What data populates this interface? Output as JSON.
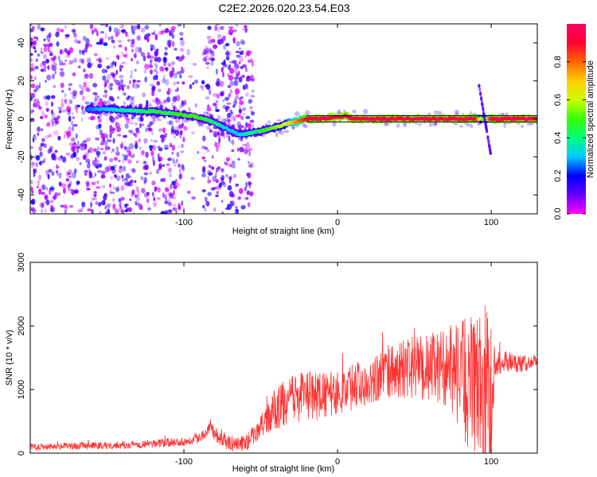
{
  "title": "C2E2.2026.020.23.54.E03",
  "chart_data": [
    {
      "type": "heatmap",
      "xlabel": "Height of straight line (km)",
      "ylabel": "Frequency (Hz)",
      "xlim": [
        -200,
        130
      ],
      "ylim": [
        -50,
        50
      ],
      "xticks": [
        -100,
        0,
        100
      ],
      "yticks": [
        -40,
        -20,
        0,
        20,
        40
      ],
      "colorbar": {
        "label": "Normalized spectral amplitude",
        "range": [
          0.0,
          1.0
        ],
        "ticks": [
          0.0,
          0.2,
          0.4,
          0.6,
          0.8
        ],
        "tick_labels": [
          "0.0",
          "0.2",
          "0.4",
          "0.6",
          "0.8"
        ],
        "colors": [
          "#ff00ff",
          "#6600ff",
          "#0000ff",
          "#00c8ff",
          "#00ff80",
          "#33ff00",
          "#ccff00",
          "#ffcc00",
          "#ff6600",
          "#ff0033",
          "#ff0066"
        ]
      },
      "trace": {
        "x": [
          -163,
          -150,
          -140,
          -130,
          -120,
          -110,
          -100,
          -95,
          -90,
          -85,
          -80,
          -75,
          -70,
          -65,
          -60,
          -55,
          -50,
          -45,
          -40,
          -35,
          -30,
          -25,
          -20,
          -10,
          0,
          5,
          10,
          20,
          40,
          60,
          80,
          90,
          93,
          96,
          100,
          130
        ],
        "y": [
          5,
          5,
          4.5,
          4,
          4,
          3,
          2,
          1.5,
          0.5,
          -0.5,
          -2,
          -4,
          -6,
          -8,
          -8,
          -7,
          -6.5,
          -5.5,
          -4.5,
          -3,
          -2,
          -1,
          0,
          0,
          1,
          1.5,
          0,
          0,
          0,
          0,
          0,
          0,
          0,
          0,
          0,
          0
        ],
        "amplitude": [
          0.25,
          0.3,
          0.35,
          0.4,
          0.45,
          0.45,
          0.5,
          0.5,
          0.5,
          0.45,
          0.4,
          0.35,
          0.3,
          0.3,
          0.35,
          0.4,
          0.45,
          0.5,
          0.55,
          0.6,
          0.7,
          0.8,
          0.9,
          0.95,
          0.95,
          0.95,
          0.95,
          0.95,
          0.95,
          0.95,
          0.95,
          0.9,
          0.6,
          0.5,
          0.95,
          0.95
        ]
      },
      "noise_region_x": [
        -200,
        -55
      ],
      "noise_gap_x": [
        -100,
        -88
      ]
    },
    {
      "type": "line",
      "xlabel": "Height of straight line (km)",
      "ylabel": "SNR (10 * v/v)",
      "xlim": [
        -200,
        130
      ],
      "ylim": [
        0,
        3000
      ],
      "xticks": [
        -100,
        0,
        100
      ],
      "yticks": [
        0,
        1000,
        2000,
        3000
      ],
      "color": "#ff3333",
      "envelope": {
        "x": [
          -200,
          -150,
          -120,
          -100,
          -90,
          -85,
          -83,
          -80,
          -75,
          -70,
          -60,
          -52,
          -45,
          -40,
          -30,
          -20,
          -10,
          0,
          10,
          20,
          30,
          40,
          50,
          60,
          70,
          75,
          80,
          85,
          90,
          95,
          98,
          100,
          103,
          110,
          120,
          130
        ],
        "y": [
          100,
          120,
          150,
          180,
          250,
          350,
          450,
          300,
          200,
          150,
          150,
          350,
          550,
          700,
          850,
          900,
          900,
          950,
          1050,
          1150,
          1250,
          1300,
          1350,
          1350,
          1350,
          1300,
          1200,
          1100,
          1050,
          1000,
          950,
          1000,
          1400,
          1450,
          1400,
          1450
        ]
      },
      "amplitude": {
        "x": [
          -200,
          -100,
          -52,
          -40,
          -20,
          0,
          40,
          70,
          80,
          85,
          90,
          95,
          98,
          100,
          103,
          130
        ],
        "y": [
          50,
          70,
          150,
          350,
          400,
          350,
          450,
          600,
          900,
          1100,
          1100,
          1300,
          1500,
          1000,
          200,
          100
        ]
      }
    }
  ]
}
